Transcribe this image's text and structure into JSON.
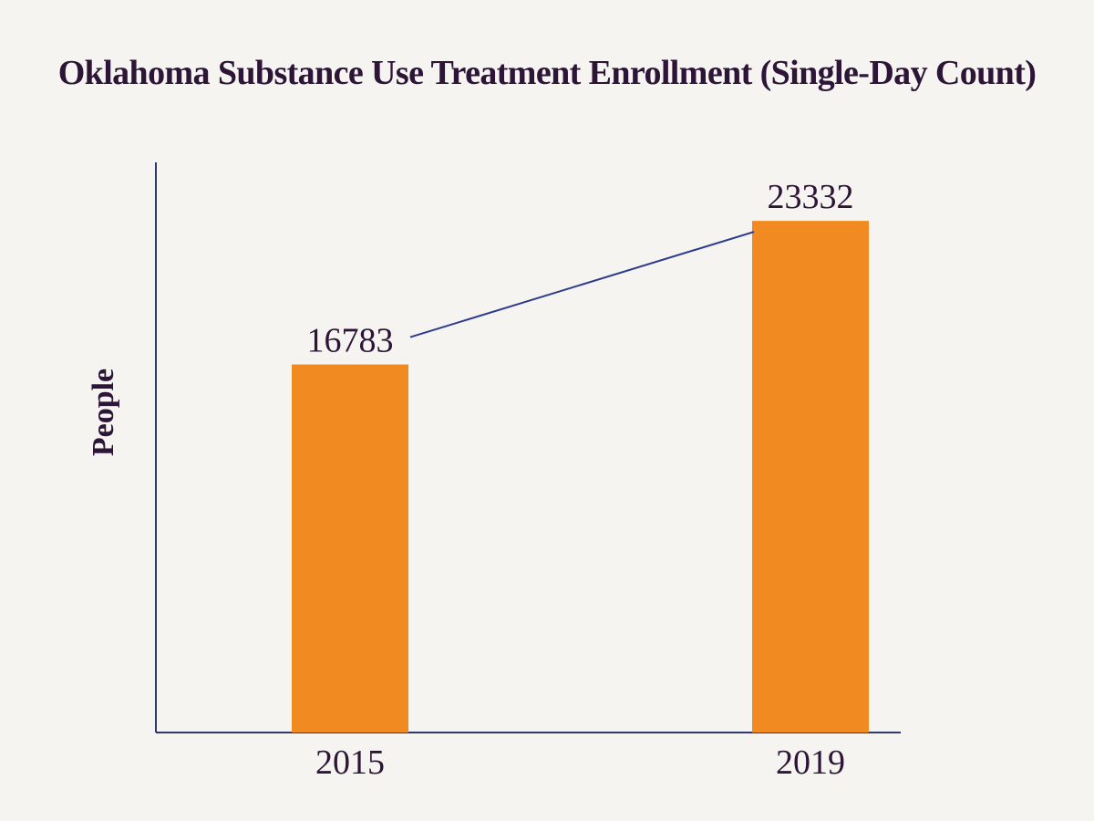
{
  "chart_data": {
    "type": "bar",
    "title": "Oklahoma Substance Use Treatment Enrollment (Single-Day Count)",
    "xlabel": "",
    "ylabel": "People",
    "categories": [
      "2015",
      "2019"
    ],
    "values": [
      16783,
      23332
    ],
    "data_labels": [
      "16783",
      "23332"
    ],
    "ylim": [
      0,
      26000
    ],
    "trend_line": true,
    "grid": false,
    "legend": "none",
    "colors": {
      "bar": "#f28a22",
      "trend_line": "#2e3a8c",
      "axis": "#2e3a6e",
      "text": "#2d1537",
      "background": "#f5f4f0"
    }
  }
}
